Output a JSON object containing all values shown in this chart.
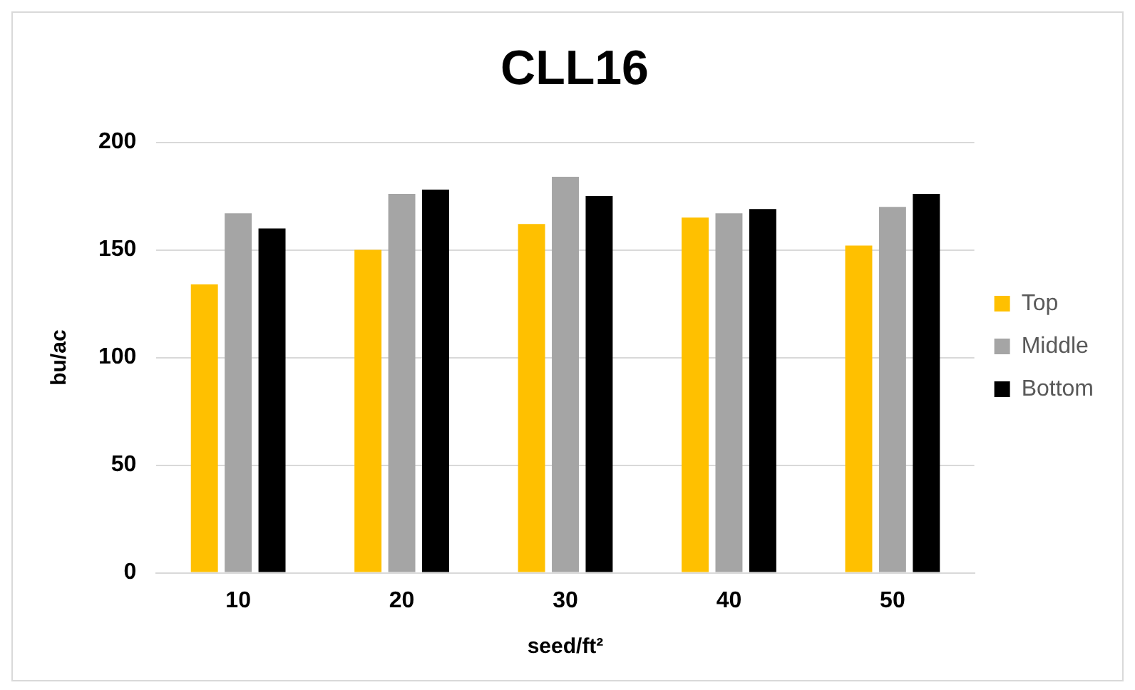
{
  "chart_data": {
    "type": "bar",
    "title": "CLL16",
    "xlabel": "seed/ft²",
    "ylabel": "bu/ac",
    "categories": [
      "10",
      "20",
      "30",
      "40",
      "50"
    ],
    "series": [
      {
        "name": "Top",
        "color": "#ffc000",
        "values": [
          134,
          150,
          162,
          165,
          152
        ]
      },
      {
        "name": "Middle",
        "color": "#a5a5a5",
        "values": [
          167,
          176,
          184,
          167,
          170
        ]
      },
      {
        "name": "Bottom",
        "color": "#000000",
        "values": [
          160,
          178,
          175,
          169,
          176
        ]
      }
    ],
    "ylim": [
      0,
      200
    ],
    "yticks": [
      0,
      50,
      100,
      150,
      200
    ],
    "grid": "y",
    "legend": "right"
  }
}
